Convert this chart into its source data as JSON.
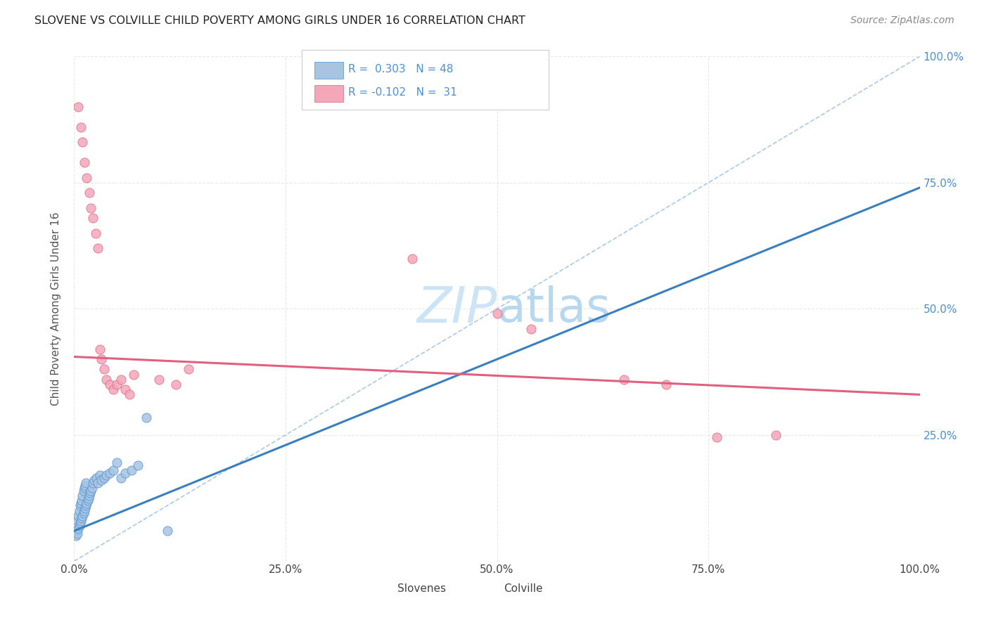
{
  "title": "SLOVENE VS COLVILLE CHILD POVERTY AMONG GIRLS UNDER 16 CORRELATION CHART",
  "source": "Source: ZipAtlas.com",
  "ylabel": "Child Poverty Among Girls Under 16",
  "xlim": [
    0,
    1
  ],
  "ylim": [
    0,
    1
  ],
  "xtick_labels": [
    "0.0%",
    "25.0%",
    "50.0%",
    "75.0%",
    "100.0%"
  ],
  "xtick_vals": [
    0,
    0.25,
    0.5,
    0.75,
    1.0
  ],
  "ytick_labels_right": [
    "",
    "25.0%",
    "50.0%",
    "75.0%",
    "100.0%"
  ],
  "ytick_vals": [
    0,
    0.25,
    0.5,
    0.75,
    1.0
  ],
  "blue_fill": "#a8c4e0",
  "blue_edge": "#4a90d9",
  "pink_fill": "#f4a7b9",
  "pink_edge": "#e06080",
  "blue_line_color": "#3a7fc1",
  "pink_line_color": "#e06080",
  "diag_line_color": "#a0c4e8",
  "right_axis_color": "#4a90d9",
  "R_blue": 0.303,
  "N_blue": 48,
  "R_pink": -0.102,
  "N_pink": 31,
  "slovenes_x": [
    0.002,
    0.003,
    0.004,
    0.004,
    0.005,
    0.005,
    0.006,
    0.006,
    0.007,
    0.007,
    0.008,
    0.008,
    0.009,
    0.009,
    0.01,
    0.01,
    0.011,
    0.011,
    0.012,
    0.012,
    0.013,
    0.013,
    0.014,
    0.014,
    0.015,
    0.016,
    0.017,
    0.018,
    0.019,
    0.02,
    0.021,
    0.022,
    0.024,
    0.026,
    0.028,
    0.03,
    0.032,
    0.035,
    0.038,
    0.042,
    0.046,
    0.05,
    0.055,
    0.06,
    0.068,
    0.075,
    0.085,
    0.11
  ],
  "slovenes_y": [
    0.05,
    0.06,
    0.055,
    0.08,
    0.065,
    0.09,
    0.07,
    0.1,
    0.075,
    0.11,
    0.08,
    0.115,
    0.085,
    0.12,
    0.09,
    0.13,
    0.095,
    0.14,
    0.1,
    0.145,
    0.105,
    0.15,
    0.11,
    0.155,
    0.115,
    0.12,
    0.125,
    0.13,
    0.135,
    0.14,
    0.145,
    0.155,
    0.16,
    0.165,
    0.155,
    0.17,
    0.16,
    0.165,
    0.17,
    0.175,
    0.18,
    0.195,
    0.165,
    0.175,
    0.18,
    0.19,
    0.285,
    0.06
  ],
  "colville_x": [
    0.005,
    0.008,
    0.01,
    0.012,
    0.015,
    0.018,
    0.02,
    0.022,
    0.025,
    0.028,
    0.03,
    0.032,
    0.035,
    0.038,
    0.042,
    0.046,
    0.05,
    0.055,
    0.06,
    0.065,
    0.07,
    0.1,
    0.12,
    0.135,
    0.4,
    0.5,
    0.54,
    0.65,
    0.7,
    0.76,
    0.83
  ],
  "colville_y": [
    0.9,
    0.86,
    0.83,
    0.79,
    0.76,
    0.73,
    0.7,
    0.68,
    0.65,
    0.62,
    0.42,
    0.4,
    0.38,
    0.36,
    0.35,
    0.34,
    0.35,
    0.36,
    0.34,
    0.33,
    0.37,
    0.36,
    0.35,
    0.38,
    0.6,
    0.49,
    0.46,
    0.36,
    0.35,
    0.245,
    0.25
  ],
  "background_color": "#ffffff",
  "grid_color": "#e8e8e8",
  "watermark_color": "#cce4f5",
  "watermark_fontsize": 52
}
